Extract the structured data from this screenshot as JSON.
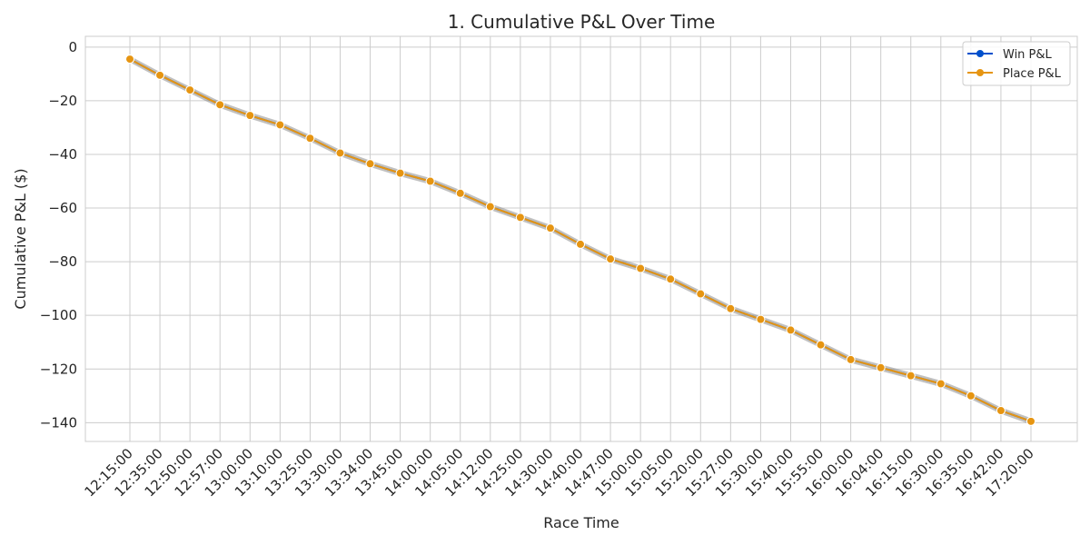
{
  "chart_data": {
    "type": "line",
    "title": "1. Cumulative P&L Over Time",
    "xlabel": "Race Time",
    "ylabel": "Cumulative P&L ($)",
    "categories": [
      "12:15:00",
      "12:35:00",
      "12:50:00",
      "12:57:00",
      "13:00:00",
      "13:10:00",
      "13:25:00",
      "13:30:00",
      "13:34:00",
      "13:45:00",
      "14:00:00",
      "14:05:00",
      "14:12:00",
      "14:25:00",
      "14:30:00",
      "14:40:00",
      "14:47:00",
      "15:00:00",
      "15:05:00",
      "15:20:00",
      "15:27:00",
      "15:30:00",
      "15:40:00",
      "15:55:00",
      "16:00:00",
      "16:04:00",
      "16:15:00",
      "16:30:00",
      "16:35:00",
      "16:42:00",
      "17:20:00"
    ],
    "ylim": [
      -147,
      4
    ],
    "yticks": [
      0,
      -20,
      -40,
      -60,
      -80,
      -100,
      -120,
      -140
    ],
    "grid": true,
    "legend_position": "top-right",
    "series": [
      {
        "name": "Win P&L",
        "color": "#0050cc",
        "values": [
          -4.5,
          -10.5,
          -16,
          -21.5,
          -25.5,
          -29,
          -34,
          -39.5,
          -43.5,
          -47,
          -50,
          -54.5,
          -59.5,
          -63.5,
          -67.5,
          -73.5,
          -79,
          -82.5,
          -86.5,
          -92,
          -97.5,
          -101.5,
          -105.5,
          -111,
          -116.5,
          -119.5,
          -122.5,
          -125.5,
          -130,
          -135.5,
          -139.5
        ]
      },
      {
        "name": "Place P&L",
        "color": "#e69512",
        "values": [
          -4.5,
          -10.5,
          -16,
          -21.5,
          -25.5,
          -29,
          -34,
          -39.5,
          -43.5,
          -47,
          -50,
          -54.5,
          -59.5,
          -63.5,
          -67.5,
          -73.5,
          -79,
          -82.5,
          -86.5,
          -92,
          -97.5,
          -101.5,
          -105.5,
          -111,
          -116.5,
          -119.5,
          -122.5,
          -125.5,
          -130,
          -135.5,
          -139.5
        ]
      }
    ]
  }
}
